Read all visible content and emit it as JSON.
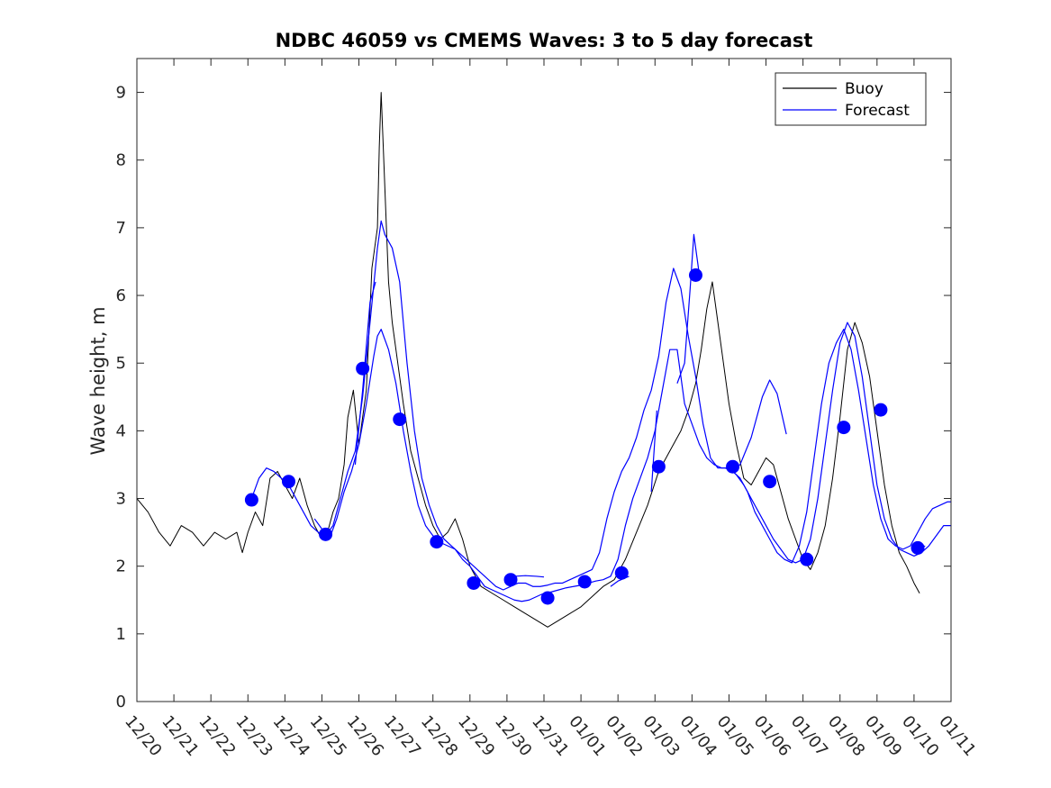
{
  "chart_data": {
    "type": "line",
    "title": "NDBC 46059 vs CMEMS Waves: 3 to 5 day forecast",
    "xlabel": "",
    "ylabel": "Wave height, m",
    "ylim": [
      0,
      9.5
    ],
    "xlim": [
      0,
      22
    ],
    "yticks": [
      "0",
      "1",
      "2",
      "3",
      "4",
      "5",
      "6",
      "7",
      "8",
      "9"
    ],
    "xticks": [
      "12/20",
      "12/21",
      "12/22",
      "12/23",
      "12/24",
      "12/25",
      "12/26",
      "12/27",
      "12/28",
      "12/29",
      "12/30",
      "12/31",
      "01/01",
      "01/02",
      "01/03",
      "01/04",
      "01/05",
      "01/06",
      "01/07",
      "01/08",
      "01/09",
      "01/10",
      "01/11"
    ],
    "legend": {
      "position": "top-right",
      "entries": [
        "Buoy",
        "Forecast"
      ]
    },
    "colors": {
      "buoy": "#000000",
      "forecast": "#0000ff",
      "markers": "#0000ff"
    },
    "series": [
      {
        "name": "Buoy",
        "color": "#000000",
        "x": [
          0,
          0.3,
          0.6,
          0.9,
          1.2,
          1.5,
          1.8,
          2.1,
          2.4,
          2.7,
          2.85,
          3.0,
          3.2,
          3.4,
          3.6,
          3.8,
          4.0,
          4.2,
          4.4,
          4.6,
          4.8,
          5.0,
          5.15,
          5.3,
          5.45,
          5.6,
          5.7,
          5.85,
          6.0,
          6.2,
          6.35,
          6.5,
          6.55,
          6.6,
          6.7,
          6.8,
          6.9,
          7.0,
          7.2,
          7.4,
          7.6,
          7.8,
          8.0,
          8.2,
          8.4,
          8.6,
          8.8,
          9.0,
          9.3,
          9.6,
          9.9,
          10.2,
          10.5,
          10.8,
          11.1,
          11.4,
          11.7,
          12.0,
          12.3,
          12.6,
          12.9,
          13.2,
          13.5,
          13.8,
          14.1,
          14.4,
          14.7,
          14.9,
          15.0,
          15.1,
          15.25,
          15.4,
          15.55,
          15.7,
          15.85,
          16.0,
          16.2,
          16.4,
          16.6,
          16.8,
          17.0,
          17.2,
          17.4,
          17.6,
          17.8,
          18.0,
          18.2,
          18.4,
          18.6,
          18.8,
          19.0,
          19.2,
          19.4,
          19.6,
          19.8,
          20.0,
          20.2,
          20.4,
          20.6,
          20.8,
          21.0,
          21.15
        ],
        "values": [
          3.0,
          2.8,
          2.5,
          2.3,
          2.6,
          2.5,
          2.3,
          2.5,
          2.4,
          2.5,
          2.2,
          2.5,
          2.8,
          2.6,
          3.3,
          3.4,
          3.2,
          3.0,
          3.3,
          2.9,
          2.6,
          2.4,
          2.5,
          2.8,
          3.0,
          3.5,
          4.2,
          4.6,
          3.8,
          4.6,
          6.4,
          7.0,
          8.2,
          9.0,
          7.6,
          6.2,
          5.6,
          5.2,
          4.4,
          3.7,
          3.3,
          2.9,
          2.6,
          2.4,
          2.5,
          2.7,
          2.4,
          2.0,
          1.7,
          1.6,
          1.5,
          1.4,
          1.3,
          1.2,
          1.1,
          1.2,
          1.3,
          1.4,
          1.55,
          1.7,
          1.8,
          2.1,
          2.5,
          2.9,
          3.4,
          3.7,
          4.0,
          4.3,
          4.5,
          4.7,
          5.2,
          5.8,
          6.2,
          5.6,
          5.0,
          4.4,
          3.8,
          3.3,
          3.2,
          3.4,
          3.6,
          3.5,
          3.1,
          2.7,
          2.4,
          2.1,
          1.95,
          2.2,
          2.6,
          3.3,
          4.2,
          5.2,
          5.6,
          5.3,
          4.8,
          4.0,
          3.2,
          2.6,
          2.2,
          2.0,
          1.75,
          1.6
        ]
      },
      {
        "name": "Forecast (run A)",
        "color": "#0000ff",
        "x": [
          3.1,
          3.3,
          3.5,
          3.7,
          3.9,
          4.1,
          4.3,
          4.5,
          4.7,
          4.9,
          5.1,
          5.3,
          5.5,
          5.7,
          5.9,
          6.1,
          6.3,
          6.5,
          6.6,
          6.7,
          6.9,
          7.1,
          7.3,
          7.5,
          7.7,
          7.9,
          8.1,
          8.3,
          8.5,
          8.7,
          8.9,
          9.1,
          9.3,
          9.5,
          9.7,
          9.9,
          10.1,
          10.3,
          10.5,
          10.7,
          10.9,
          11.1,
          11.3,
          11.5,
          11.7,
          11.9,
          12.1,
          12.3,
          12.5,
          12.7,
          12.9,
          13.1,
          13.3,
          13.5,
          13.7,
          13.9,
          14.1,
          14.3,
          14.5,
          14.7,
          14.9,
          15.1,
          15.3,
          15.5,
          15.7,
          15.9,
          16.1,
          16.3,
          16.5,
          16.7,
          16.9,
          17.1,
          17.3,
          17.5,
          17.7,
          17.9,
          18.1,
          18.3,
          18.5,
          18.7,
          18.9,
          19.1,
          19.3,
          19.5,
          19.7,
          19.9,
          20.1,
          20.3,
          20.5,
          20.7,
          20.9,
          21.1,
          21.3,
          21.5,
          21.7,
          21.9,
          22.0
        ],
        "values": [
          3.0,
          3.3,
          3.45,
          3.4,
          3.3,
          3.2,
          3.0,
          2.8,
          2.6,
          2.5,
          2.45,
          2.6,
          3.0,
          3.4,
          3.7,
          4.5,
          5.6,
          6.7,
          7.1,
          6.9,
          6.7,
          6.2,
          5.0,
          4.0,
          3.3,
          2.9,
          2.6,
          2.4,
          2.3,
          2.2,
          2.1,
          2.0,
          1.9,
          1.8,
          1.7,
          1.65,
          1.7,
          1.75,
          1.75,
          1.7,
          1.7,
          1.72,
          1.75,
          1.75,
          1.8,
          1.85,
          1.9,
          1.95,
          2.2,
          2.7,
          3.1,
          3.4,
          3.6,
          3.9,
          4.3,
          4.6,
          5.1,
          5.9,
          6.4,
          6.1,
          5.4,
          4.8,
          4.1,
          3.6,
          3.45,
          3.45,
          3.4,
          3.3,
          3.1,
          2.8,
          2.6,
          2.4,
          2.2,
          2.1,
          2.05,
          2.3,
          2.8,
          3.6,
          4.4,
          5.0,
          5.3,
          5.5,
          5.2,
          4.6,
          3.9,
          3.2,
          2.7,
          2.4,
          2.3,
          2.25,
          2.3,
          2.5,
          2.7,
          2.85,
          2.9,
          2.95,
          2.95
        ]
      },
      {
        "name": "Forecast (run B)",
        "color": "#0000ff",
        "x": [
          4.8,
          5.0,
          5.2,
          5.4,
          5.6,
          5.8,
          6.0,
          6.2,
          6.4,
          6.5,
          6.6,
          6.8,
          7.0,
          7.2,
          7.4,
          7.6,
          7.8,
          8.0,
          8.2,
          8.4,
          8.6,
          8.8,
          9.0,
          9.2,
          9.4,
          9.6,
          9.8,
          10.0,
          10.2,
          10.4,
          10.6,
          10.8,
          11.0,
          11.2,
          11.4,
          11.6,
          11.8,
          12.0,
          12.2,
          12.4,
          12.6,
          12.8,
          13.0,
          13.2,
          13.4,
          13.6,
          13.8,
          14.0,
          14.2,
          14.4,
          14.6,
          14.8,
          15.0,
          15.2,
          15.4,
          15.6,
          15.8,
          16.0,
          16.2,
          16.4,
          16.6,
          16.8,
          17.0,
          17.2,
          17.4,
          17.6,
          17.8,
          18.0,
          18.2,
          18.4,
          18.6,
          18.8,
          19.0,
          19.2,
          19.4,
          19.6,
          19.8,
          20.0,
          20.2,
          20.4,
          20.6,
          20.8,
          21.0,
          21.2,
          21.4,
          21.6,
          21.8,
          22.0
        ],
        "values": [
          2.7,
          2.55,
          2.4,
          2.7,
          3.1,
          3.4,
          3.8,
          4.4,
          5.1,
          5.4,
          5.5,
          5.2,
          4.7,
          4.0,
          3.4,
          2.9,
          2.6,
          2.45,
          2.35,
          2.3,
          2.25,
          2.1,
          2.0,
          1.85,
          1.7,
          1.65,
          1.6,
          1.55,
          1.5,
          1.48,
          1.5,
          1.55,
          1.6,
          1.62,
          1.65,
          1.68,
          1.7,
          1.72,
          1.75,
          1.78,
          1.8,
          1.85,
          2.1,
          2.6,
          3.0,
          3.3,
          3.6,
          4.0,
          4.6,
          5.2,
          5.2,
          4.4,
          4.1,
          3.8,
          3.6,
          3.5,
          3.45,
          3.45,
          3.35,
          3.2,
          3.0,
          2.8,
          2.6,
          2.4,
          2.25,
          2.1,
          2.05,
          2.1,
          2.4,
          3.0,
          3.8,
          4.6,
          5.3,
          5.6,
          5.4,
          4.8,
          4.0,
          3.2,
          2.7,
          2.4,
          2.25,
          2.2,
          2.15,
          2.2,
          2.3,
          2.45,
          2.6,
          2.6
        ]
      },
      {
        "name": "Forecast (runs C)",
        "color": "#0000ff",
        "segments": [
          {
            "x": [
              5.9,
              6.1,
              6.3,
              6.45
            ],
            "values": [
              3.5,
              4.6,
              5.9,
              6.2
            ]
          },
          {
            "x": [
              10.2,
              10.5,
              10.8,
              11.0
            ],
            "values": [
              1.85,
              1.86,
              1.85,
              1.84
            ]
          },
          {
            "x": [
              12.8,
              13.0,
              13.3
            ],
            "values": [
              1.7,
              1.78,
              1.85
            ]
          },
          {
            "x": [
              13.9,
              14.0,
              14.05
            ],
            "values": [
              3.1,
              3.9,
              4.3
            ]
          },
          {
            "x": [
              14.6,
              14.8,
              14.95,
              15.05,
              15.2
            ],
            "values": [
              4.7,
              5.0,
              6.1,
              6.9,
              6.3
            ]
          },
          {
            "x": [
              16.1,
              16.3,
              16.6,
              16.9,
              17.1,
              17.3,
              17.55
            ],
            "values": [
              3.4,
              3.5,
              3.9,
              4.5,
              4.75,
              4.55,
              3.95
            ]
          },
          {
            "x": [
              21.0,
              21.3
            ],
            "values": [
              2.2,
              2.3
            ]
          }
        ]
      }
    ],
    "markers": {
      "name": "Forecast (valid points)",
      "x": [
        3.1,
        4.1,
        5.1,
        6.1,
        7.1,
        8.1,
        9.1,
        10.1,
        11.1,
        12.1,
        13.1,
        14.1,
        15.1,
        16.1,
        17.1,
        18.1,
        19.1,
        20.1,
        21.1
      ],
      "values": [
        2.98,
        3.25,
        2.47,
        4.92,
        4.17,
        2.36,
        1.75,
        1.8,
        1.53,
        1.77,
        1.9,
        3.47,
        6.3,
        3.47,
        3.25,
        2.1,
        4.05,
        4.31,
        2.27
      ]
    }
  }
}
